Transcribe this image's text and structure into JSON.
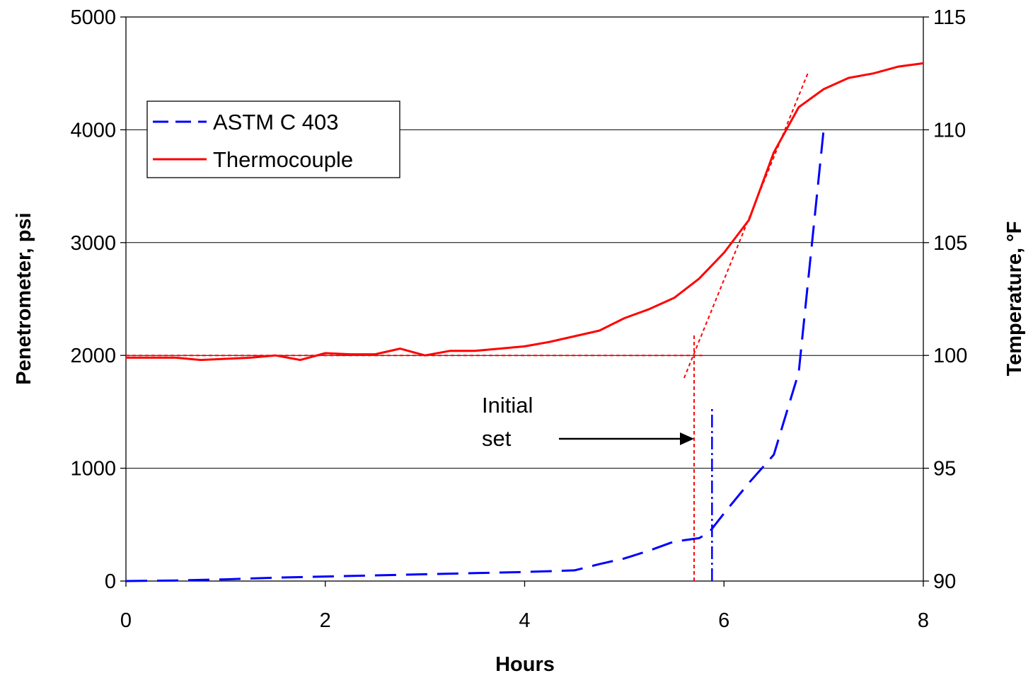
{
  "chart_data": {
    "type": "line",
    "xlabel": "Hours",
    "ylabel_left": "Penetrometer, psi",
    "ylabel_right": "Temperature, °F",
    "xlim": [
      0,
      8
    ],
    "ylim_left": [
      0,
      5000
    ],
    "ylim_right": [
      90,
      115
    ],
    "x_ticks": [
      "0",
      "2",
      "4",
      "6",
      "8"
    ],
    "y_ticks_left": [
      "0",
      "1000",
      "2000",
      "3000",
      "4000",
      "5000"
    ],
    "y_ticks_right": [
      "90",
      "95",
      "100",
      "105",
      "110",
      "115"
    ],
    "grid": "horizontal",
    "legend_position": "upper-left",
    "series": [
      {
        "name": "ASTM C 403",
        "axis": "left",
        "color": "#0000FF",
        "style": "dashed",
        "x": [
          0,
          0.5,
          1.0,
          1.5,
          2.0,
          2.5,
          3.0,
          3.5,
          4.0,
          4.5,
          4.75,
          5.0,
          5.25,
          5.5,
          5.75,
          5.85,
          6.0,
          6.25,
          6.5,
          6.75,
          7.0
        ],
        "y": [
          0,
          5,
          15,
          30,
          40,
          50,
          60,
          70,
          80,
          95,
          150,
          200,
          270,
          350,
          380,
          430,
          600,
          870,
          1120,
          1850,
          4000
        ]
      },
      {
        "name": "Thermocouple",
        "axis": "right",
        "color": "#FF0000",
        "style": "solid",
        "x": [
          0,
          0.25,
          0.5,
          0.75,
          1.0,
          1.25,
          1.5,
          1.75,
          2.0,
          2.25,
          2.5,
          2.75,
          3.0,
          3.25,
          3.5,
          3.75,
          4.0,
          4.25,
          4.5,
          4.75,
          5.0,
          5.25,
          5.5,
          5.75,
          6.0,
          6.25,
          6.5,
          6.75,
          7.0,
          7.25,
          7.5,
          7.75,
          8.0
        ],
        "y": [
          99.9,
          99.9,
          99.9,
          99.8,
          99.85,
          99.9,
          100.0,
          99.8,
          100.1,
          100.05,
          100.05,
          100.3,
          100.0,
          100.2,
          100.2,
          100.3,
          100.4,
          100.6,
          100.85,
          101.1,
          101.65,
          102.05,
          102.55,
          103.4,
          104.55,
          106.0,
          109.0,
          111.0,
          111.8,
          112.3,
          112.5,
          112.8,
          112.95
        ]
      }
    ],
    "tangent_line": {
      "axis": "right",
      "color": "#FF0000",
      "style": "dotted",
      "x": [
        5.6,
        6.85
      ],
      "y": [
        99.0,
        112.6
      ]
    },
    "baseline_line": {
      "axis": "right",
      "color": "#FF0000",
      "style": "dotted",
      "x": [
        0,
        5.8
      ],
      "y": [
        100,
        100
      ]
    },
    "markers": [
      {
        "label": "Thermocouple initial set",
        "x": 5.7,
        "color": "#FF0000",
        "style": "dotted",
        "y_range_right": [
          90,
          101
        ]
      },
      {
        "label": "ASTM initial set",
        "x": 5.88,
        "color": "#0000FF",
        "style": "dash-dot",
        "y_range_left": [
          0,
          1550
        ]
      }
    ],
    "annotations": [
      {
        "text": [
          "Initial",
          "set"
        ],
        "arrow_to_x": 5.7
      }
    ]
  }
}
